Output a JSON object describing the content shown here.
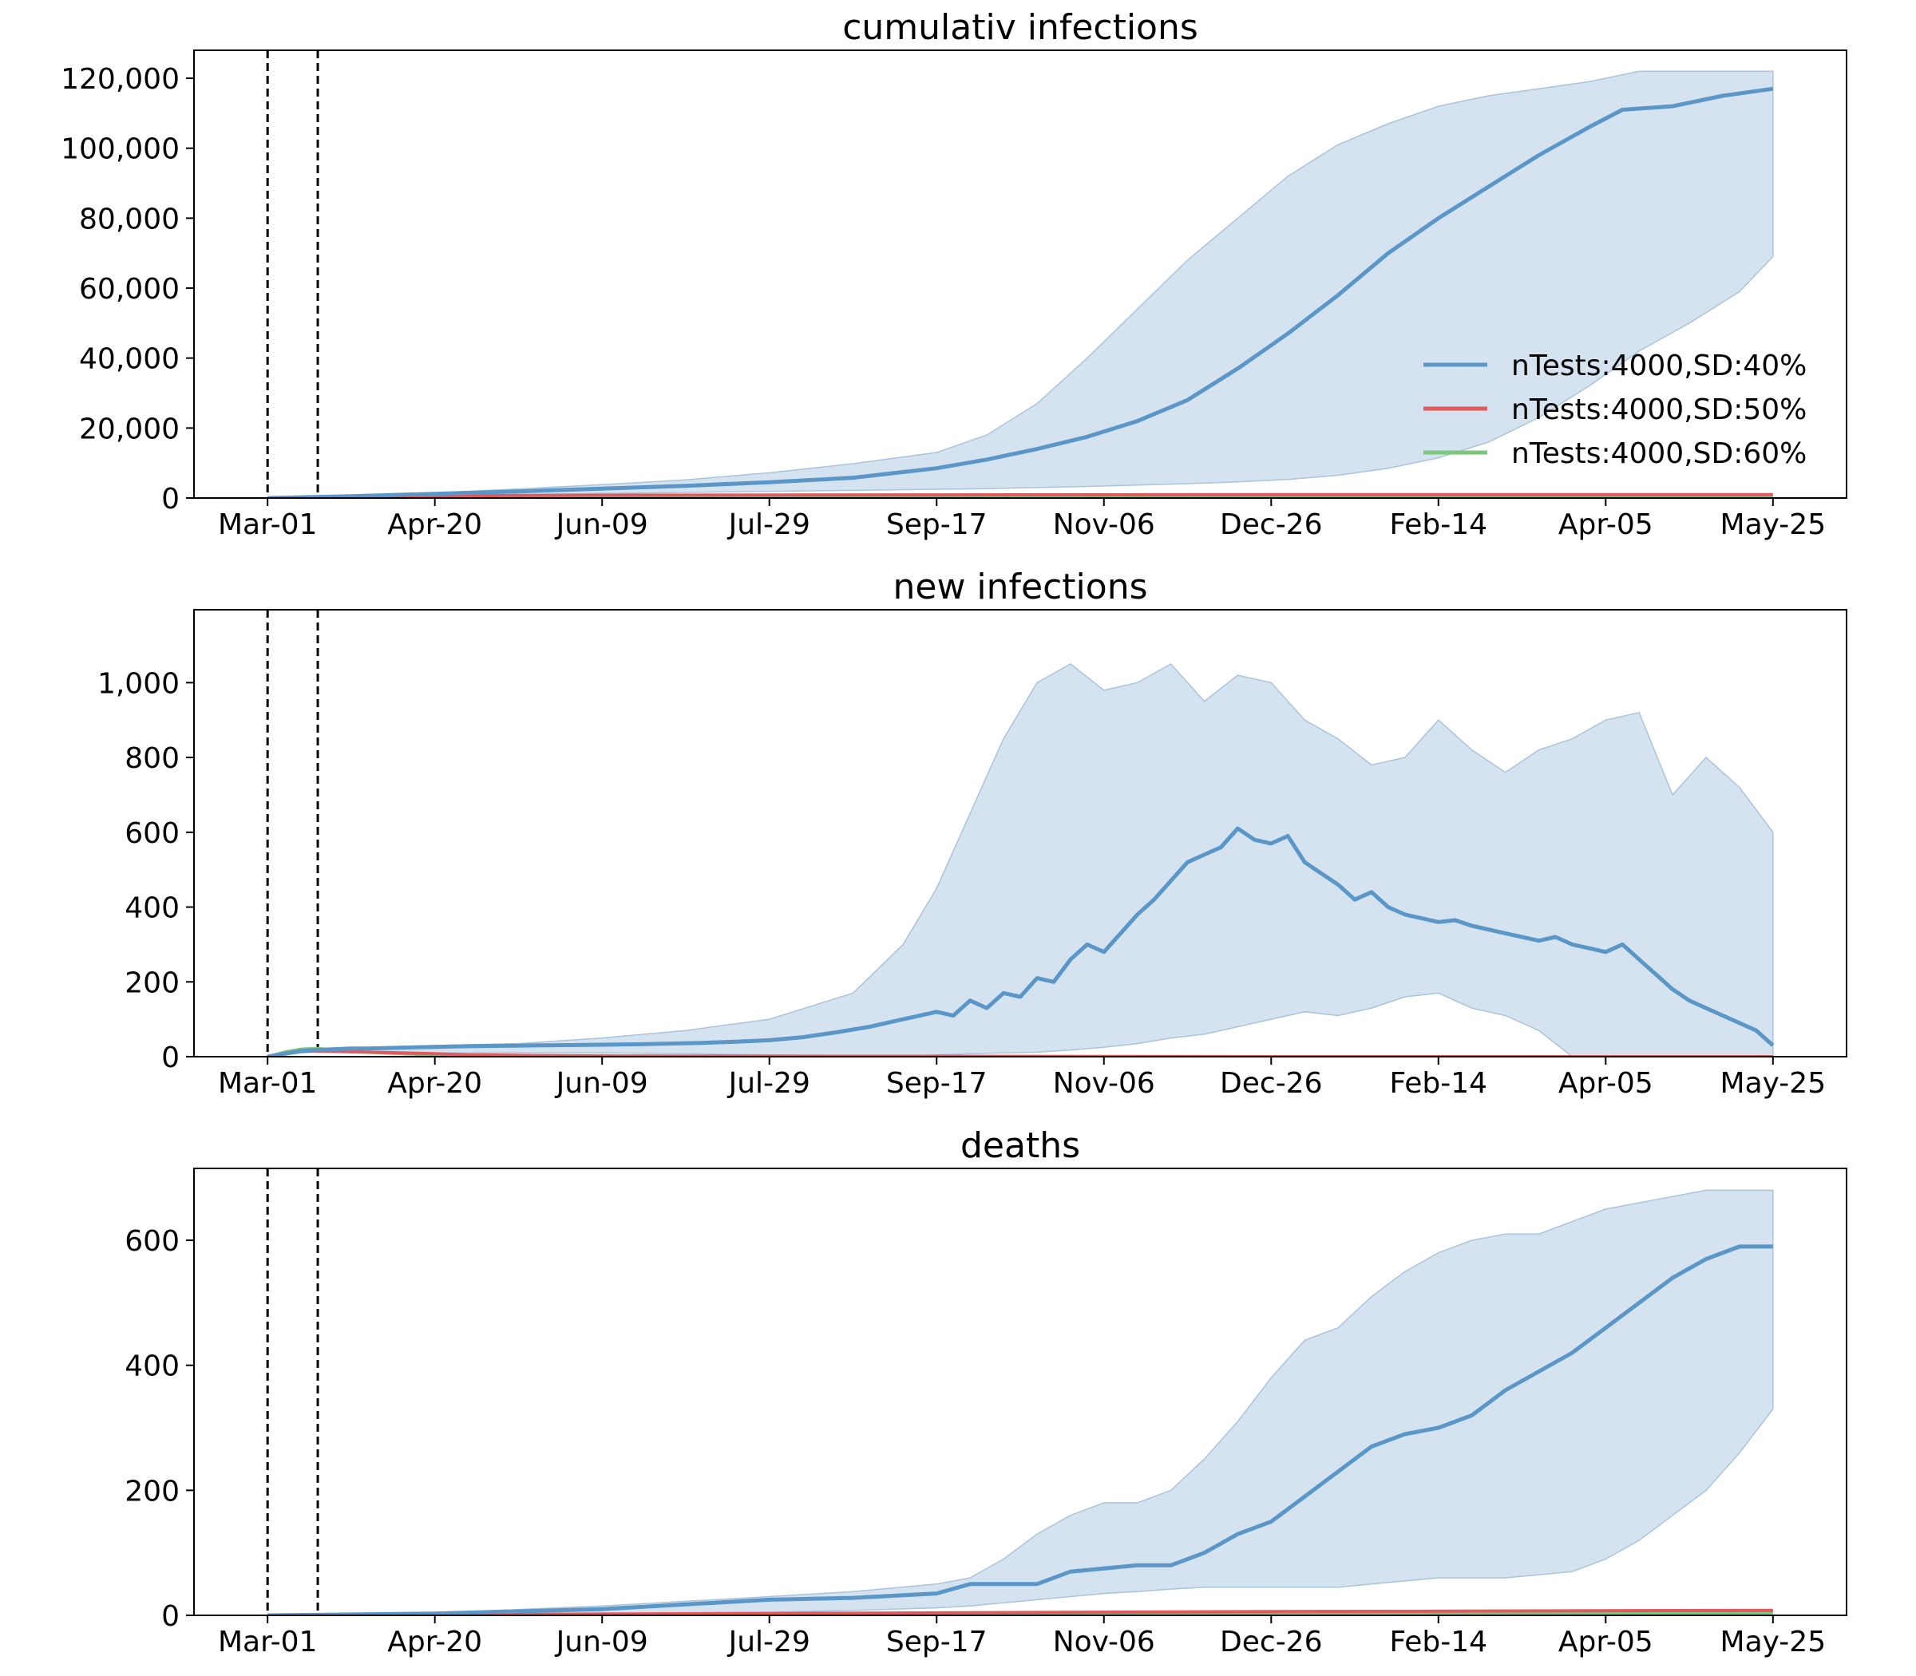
{
  "colors": {
    "series_40": "#5b96c8",
    "series_50": "#e05a5e",
    "series_60": "#7cc57c",
    "band": "#c6d9ea",
    "band_edge": "#a9c4dd",
    "axes": "#000000",
    "vline": "#000000"
  },
  "chart_data": [
    {
      "type": "line",
      "title": "cumulativ infections",
      "x_tick_labels": [
        "Mar-01",
        "Apr-20",
        "Jun-09",
        "Jul-29",
        "Sep-17",
        "Nov-06",
        "Dec-26",
        "Feb-14",
        "Apr-05",
        "May-25"
      ],
      "x_tick_days": [
        0,
        50,
        100,
        150,
        200,
        250,
        300,
        350,
        400,
        450
      ],
      "xlim": [
        -22,
        472
      ],
      "ylim": [
        0,
        128000
      ],
      "y_ticks": [
        0,
        20000,
        40000,
        60000,
        80000,
        100000,
        120000
      ],
      "y_tick_labels": [
        "0",
        "20,000",
        "40,000",
        "60,000",
        "80,000",
        "100,000",
        "120,000"
      ],
      "vlines_days": [
        0,
        15
      ],
      "grid": false,
      "legend": {
        "placement": "lower-right",
        "entries": [
          "nTests:4000,SD:40%",
          "nTests:4000,SD:50%",
          "nTests:4000,SD:60%"
        ]
      },
      "band": {
        "x": [
          0,
          25,
          50,
          75,
          100,
          125,
          150,
          175,
          200,
          215,
          230,
          245,
          260,
          275,
          290,
          305,
          320,
          335,
          350,
          365,
          380,
          395,
          410,
          425,
          440,
          450
        ],
        "upper": [
          0,
          600,
          1500,
          2600,
          3800,
          5200,
          7200,
          9800,
          13000,
          18000,
          27000,
          40000,
          54000,
          68000,
          80000,
          92000,
          101000,
          107000,
          112000,
          115000,
          117000,
          119000,
          122000,
          122000,
          122000,
          122000
        ],
        "lower": [
          0,
          300,
          700,
          1000,
          1300,
          1600,
          1900,
          2200,
          2500,
          2700,
          3000,
          3300,
          3700,
          4100,
          4600,
          5300,
          6500,
          8500,
          11500,
          16000,
          23000,
          32000,
          42000,
          50000,
          59000,
          69000
        ]
      },
      "series": [
        {
          "name": "nTests:4000,SD:40%",
          "x": [
            0,
            25,
            50,
            75,
            100,
            125,
            150,
            175,
            200,
            215,
            230,
            245,
            260,
            275,
            290,
            305,
            320,
            335,
            350,
            365,
            380,
            395,
            405,
            420,
            435,
            450
          ],
          "values": [
            0,
            500,
            1200,
            1900,
            2700,
            3500,
            4500,
            5800,
            8500,
            11000,
            14000,
            17500,
            22000,
            28000,
            37000,
            47000,
            58000,
            70000,
            80000,
            89000,
            98000,
            106000,
            111000,
            112000,
            115000,
            117000
          ]
        },
        {
          "name": "nTests:4000,SD:50%",
          "x": [
            0,
            15,
            50,
            100,
            200,
            300,
            450
          ],
          "values": [
            0,
            300,
            650,
            800,
            900,
            950,
            980
          ]
        },
        {
          "name": "nTests:4000,SD:60%",
          "x": [
            0,
            15,
            50,
            100,
            200,
            300,
            450
          ],
          "values": [
            0,
            250,
            420,
            460,
            480,
            490,
            500
          ]
        }
      ]
    },
    {
      "type": "line",
      "title": "new infections",
      "x_tick_labels": [
        "Mar-01",
        "Apr-20",
        "Jun-09",
        "Jul-29",
        "Sep-17",
        "Nov-06",
        "Dec-26",
        "Feb-14",
        "Apr-05",
        "May-25"
      ],
      "x_tick_days": [
        0,
        50,
        100,
        150,
        200,
        250,
        300,
        350,
        400,
        450
      ],
      "xlim": [
        -22,
        472
      ],
      "ylim": [
        0,
        1195
      ],
      "y_ticks": [
        0,
        200,
        400,
        600,
        800,
        1000
      ],
      "y_tick_labels": [
        "0",
        "200",
        "400",
        "600",
        "800",
        "1,000"
      ],
      "vlines_days": [
        0,
        15
      ],
      "grid": false,
      "band": {
        "x": [
          0,
          15,
          30,
          50,
          75,
          100,
          125,
          150,
          175,
          190,
          200,
          210,
          220,
          230,
          240,
          250,
          260,
          270,
          280,
          290,
          300,
          310,
          320,
          330,
          340,
          350,
          360,
          370,
          380,
          390,
          400,
          410,
          420,
          430,
          440,
          450
        ],
        "upper": [
          0,
          20,
          25,
          30,
          35,
          50,
          70,
          100,
          170,
          300,
          450,
          650,
          850,
          1000,
          1050,
          980,
          1000,
          1050,
          950,
          1020,
          1000,
          900,
          850,
          780,
          800,
          900,
          820,
          760,
          820,
          850,
          900,
          920,
          700,
          800,
          720,
          600
        ],
        "lower": [
          0,
          15,
          10,
          10,
          10,
          10,
          8,
          5,
          3,
          2,
          5,
          8,
          10,
          12,
          18,
          25,
          35,
          50,
          60,
          80,
          100,
          120,
          110,
          130,
          160,
          170,
          130,
          110,
          70,
          0,
          0,
          0,
          0,
          0,
          0,
          0
        ]
      },
      "series": [
        {
          "name": "nTests:4000,SD:40%",
          "x": [
            0,
            5,
            10,
            15,
            20,
            25,
            30,
            40,
            50,
            60,
            70,
            80,
            90,
            100,
            110,
            120,
            130,
            140,
            150,
            160,
            170,
            180,
            190,
            200,
            205,
            210,
            215,
            220,
            225,
            230,
            235,
            240,
            245,
            250,
            255,
            260,
            265,
            270,
            275,
            280,
            285,
            290,
            295,
            300,
            305,
            310,
            315,
            320,
            325,
            330,
            335,
            340,
            345,
            350,
            355,
            360,
            365,
            370,
            375,
            380,
            385,
            390,
            395,
            400,
            405,
            410,
            415,
            420,
            425,
            430,
            435,
            440,
            445,
            450
          ],
          "values": [
            0,
            8,
            15,
            18,
            20,
            22,
            22,
            24,
            26,
            28,
            29,
            30,
            31,
            32,
            33,
            35,
            37,
            40,
            44,
            52,
            65,
            80,
            100,
            120,
            110,
            150,
            130,
            170,
            160,
            210,
            200,
            260,
            300,
            280,
            330,
            380,
            420,
            470,
            520,
            540,
            560,
            610,
            580,
            570,
            590,
            520,
            490,
            460,
            420,
            440,
            400,
            380,
            370,
            360,
            365,
            350,
            340,
            330,
            320,
            310,
            320,
            300,
            290,
            280,
            300,
            260,
            220,
            180,
            150,
            130,
            110,
            90,
            70,
            30
          ]
        },
        {
          "name": "nTests:4000,SD:50%",
          "x": [
            0,
            5,
            10,
            15,
            20,
            30,
            40,
            50,
            60,
            80,
            100,
            150,
            200,
            300,
            450
          ],
          "values": [
            0,
            8,
            14,
            15,
            14,
            12,
            10,
            8,
            5,
            3,
            2,
            1,
            1,
            0,
            0
          ]
        },
        {
          "name": "nTests:4000,SD:60%",
          "x": [
            0,
            5,
            10,
            15,
            20,
            30,
            40,
            50,
            60,
            80,
            100,
            150,
            200,
            300,
            450
          ],
          "values": [
            0,
            12,
            20,
            22,
            18,
            12,
            8,
            5,
            3,
            1,
            1,
            0,
            0,
            0,
            0
          ]
        }
      ]
    },
    {
      "type": "line",
      "title": "deaths",
      "x_tick_labels": [
        "Mar-01",
        "Apr-20",
        "Jun-09",
        "Jul-29",
        "Sep-17",
        "Nov-06",
        "Dec-26",
        "Feb-14",
        "Apr-05",
        "May-25"
      ],
      "x_tick_days": [
        0,
        50,
        100,
        150,
        200,
        250,
        300,
        350,
        400,
        450
      ],
      "xlim": [
        -22,
        472
      ],
      "ylim": [
        0,
        715
      ],
      "y_ticks": [
        0,
        200,
        400,
        600
      ],
      "y_tick_labels": [
        "0",
        "200",
        "400",
        "600"
      ],
      "vlines_days": [
        0,
        15
      ],
      "grid": false,
      "band": {
        "x": [
          0,
          50,
          100,
          150,
          175,
          200,
          210,
          220,
          230,
          240,
          250,
          260,
          270,
          280,
          290,
          300,
          310,
          320,
          330,
          340,
          350,
          360,
          370,
          380,
          390,
          400,
          410,
          420,
          430,
          440,
          450
        ],
        "upper": [
          0,
          4,
          15,
          30,
          38,
          50,
          60,
          90,
          130,
          160,
          180,
          180,
          200,
          250,
          310,
          380,
          440,
          460,
          510,
          550,
          580,
          600,
          610,
          610,
          630,
          650,
          660,
          670,
          680,
          680,
          680
        ],
        "lower": [
          0,
          1,
          3,
          5,
          8,
          12,
          15,
          20,
          25,
          30,
          35,
          38,
          42,
          45,
          45,
          45,
          45,
          45,
          50,
          55,
          60,
          60,
          60,
          65,
          70,
          90,
          120,
          160,
          200,
          260,
          330
        ]
      },
      "series": [
        {
          "name": "nTests:4000,SD:40%",
          "x": [
            0,
            50,
            100,
            150,
            175,
            200,
            210,
            230,
            240,
            260,
            270,
            280,
            290,
            300,
            310,
            320,
            330,
            340,
            350,
            360,
            370,
            380,
            390,
            400,
            410,
            420,
            430,
            440,
            450
          ],
          "values": [
            0,
            3,
            10,
            25,
            28,
            35,
            50,
            50,
            70,
            80,
            80,
            100,
            130,
            150,
            190,
            230,
            270,
            290,
            300,
            320,
            360,
            390,
            420,
            460,
            500,
            540,
            570,
            590,
            590
          ]
        },
        {
          "name": "nTests:4000,SD:50%",
          "x": [
            0,
            100,
            200,
            300,
            450
          ],
          "values": [
            0,
            2,
            4,
            6,
            8
          ]
        },
        {
          "name": "nTests:4000,SD:60%",
          "x": [
            0,
            100,
            200,
            300,
            450
          ],
          "values": [
            0,
            1,
            2,
            3,
            4
          ]
        }
      ]
    }
  ]
}
